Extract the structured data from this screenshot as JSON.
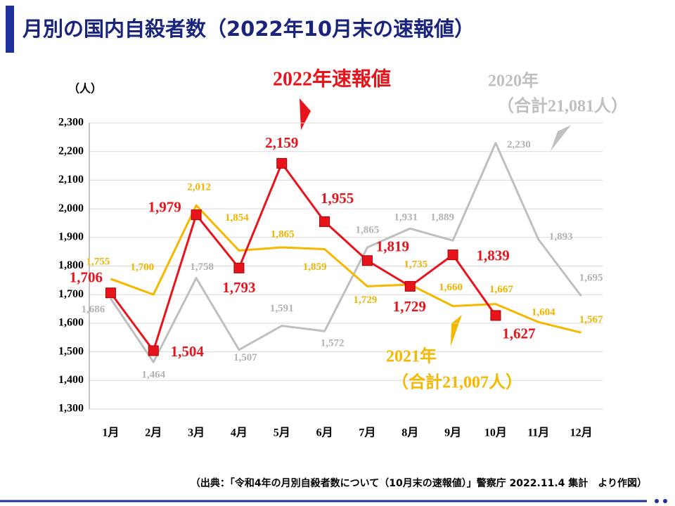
{
  "title": "月別の国内自殺者数（2022年10月末の速報値）",
  "source": "（出典：「令和4年の月別自殺者数について（10月末の速報値）」警察庁 2022.11.4 集計　より作図）",
  "chart_data": {
    "type": "line",
    "y_axis_label": "（人）",
    "categories": [
      "1月",
      "2月",
      "3月",
      "4月",
      "5月",
      "6月",
      "7月",
      "8月",
      "9月",
      "10月",
      "11月",
      "12月"
    ],
    "ylim": [
      1300,
      2300
    ],
    "yticks": [
      {
        "value": 1300,
        "label": "1,300"
      },
      {
        "value": 1400,
        "label": "1,400"
      },
      {
        "value": 1500,
        "label": "1,500"
      },
      {
        "value": 1600,
        "label": "1,600"
      },
      {
        "value": 1700,
        "label": "1,700"
      },
      {
        "value": 1800,
        "label": "1,800"
      },
      {
        "value": 1900,
        "label": "1,900"
      },
      {
        "value": 2000,
        "label": "2,000"
      },
      {
        "value": 2100,
        "label": "2,100"
      },
      {
        "value": 2200,
        "label": "2,200"
      },
      {
        "value": 2300,
        "label": "2,300"
      }
    ],
    "grid": true,
    "series": [
      {
        "name": "2020年",
        "note": "（合計21,081人）",
        "color": "#bfbfbf",
        "values": [
          1686,
          1464,
          1758,
          1507,
          1591,
          1572,
          1865,
          1931,
          1889,
          2230,
          1893,
          1695
        ],
        "value_labels": [
          "1,686",
          "1,464",
          "1,758",
          "1,507",
          "1,591",
          "1,572",
          "1,865",
          "1,931",
          "1,889",
          "2,230",
          "1,893",
          "1,695"
        ]
      },
      {
        "name": "2021年",
        "note": "（合計21,007人）",
        "color": "#f5b800",
        "values": [
          1755,
          1700,
          2012,
          1854,
          1865,
          1859,
          1729,
          1735,
          1660,
          1667,
          1604,
          1567
        ],
        "value_labels": [
          "1,755",
          "1,700",
          "2,012",
          "1,854",
          "1,865",
          "1,859",
          "1,729",
          "1,735",
          "1,660",
          "1,667",
          "1,604",
          "1,567"
        ]
      },
      {
        "name": "2022年速報値",
        "color": "#e8141b",
        "values": [
          1706,
          1504,
          1979,
          1793,
          2159,
          1955,
          1819,
          1729,
          1839,
          1627,
          null,
          null
        ],
        "value_labels": [
          "1,706",
          "1,504",
          "1,979",
          "1,793",
          "2,159",
          "1,955",
          "1,819",
          "1,729",
          "1,839",
          "1,627",
          null,
          null
        ]
      }
    ]
  }
}
